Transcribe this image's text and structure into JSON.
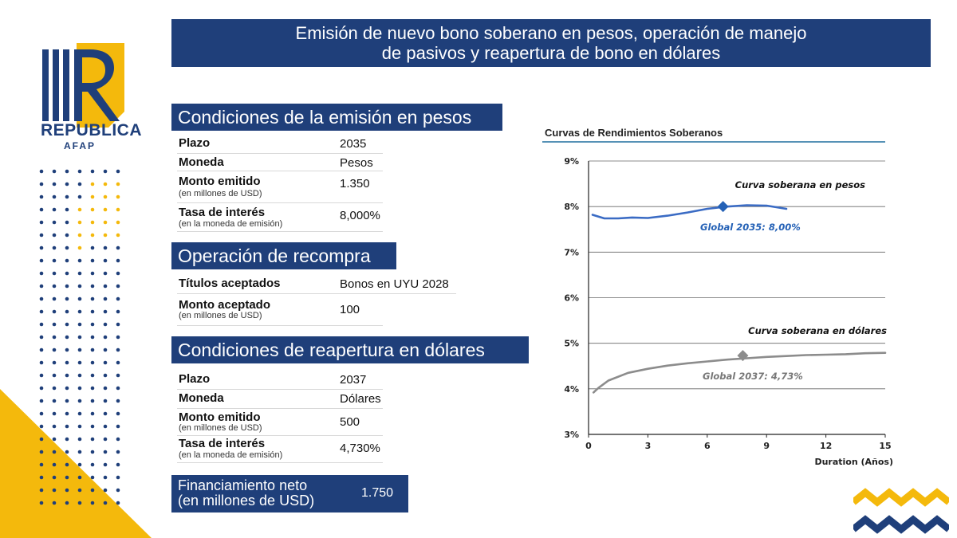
{
  "brand": {
    "name": "REPUBLICA",
    "sub": "AFAP",
    "logo_letters": "R",
    "navy": "#1f3f7a",
    "gold": "#f4b90c"
  },
  "title": {
    "line1": "Emisión de nuevo bono soberano en pesos, operación de manejo",
    "line2": "de pasivos y reapertura de bono en dólares"
  },
  "pesos": {
    "heading": "Condiciones de la emisión en pesos",
    "plazo_label": "Plazo",
    "plazo_value": "2035",
    "moneda_label": "Moneda",
    "moneda_value": "Pesos",
    "monto_label": "Monto emitido",
    "monto_sub": "(en millones de USD)",
    "monto_value": "1.350",
    "tasa_label": "Tasa de interés",
    "tasa_sub": "(en la moneda de emisión)",
    "tasa_value": "8,000%"
  },
  "recompra": {
    "heading": "Operación de recompra",
    "titulos_label": "Títulos aceptados",
    "titulos_value": "Bonos en UYU 2028",
    "monto_label": "Monto aceptado",
    "monto_sub": "(en millones de USD)",
    "monto_value": "100"
  },
  "dolares": {
    "heading": "Condiciones de reapertura en dólares",
    "plazo_label": "Plazo",
    "plazo_value": "2037",
    "moneda_label": "Moneda",
    "moneda_value": "Dólares",
    "monto_label": "Monto emitido",
    "monto_sub": "(en millones de USD)",
    "monto_value": "500",
    "tasa_label": "Tasa de interés",
    "tasa_sub": "(en la moneda de emisión)",
    "tasa_value": "4,730%"
  },
  "financiamiento": {
    "line1": "Financiamiento neto",
    "line2": "(en millones de USD)",
    "value": "1.750"
  },
  "chart_data": {
    "type": "line",
    "title": "Curvas de Rendimientos Soberanos",
    "xlabel": "Duration (Años)",
    "ylabel": "",
    "xlim": [
      0,
      15
    ],
    "ylim": [
      3,
      9
    ],
    "x_ticks": [
      "0",
      "3",
      "6",
      "9",
      "12",
      "15"
    ],
    "y_ticks": [
      "3%",
      "4%",
      "5%",
      "6%",
      "7%",
      "8%",
      "9%"
    ],
    "grid": true,
    "series": [
      {
        "name": "Curva soberana en pesos",
        "color": "#3a6bc4",
        "x": [
          0.2,
          0.8,
          1.5,
          2.2,
          3.0,
          4.0,
          5.0,
          6.0,
          7.0,
          8.0,
          9.0,
          10.0
        ],
        "y": [
          7.82,
          7.74,
          7.74,
          7.76,
          7.75,
          7.8,
          7.87,
          7.95,
          8.0,
          8.03,
          8.02,
          7.95
        ]
      },
      {
        "name": "Curva soberana en dólares",
        "color": "#8c8c8c",
        "x": [
          0.25,
          0.5,
          1.0,
          2.0,
          3.0,
          4.0,
          5.0,
          6.0,
          7.0,
          8.0,
          9.0,
          10.0,
          11.0,
          12.0,
          13.0,
          14.0,
          15.0
        ],
        "y": [
          3.92,
          4.02,
          4.18,
          4.35,
          4.44,
          4.51,
          4.56,
          4.6,
          4.64,
          4.67,
          4.7,
          4.72,
          4.74,
          4.75,
          4.76,
          4.78,
          4.79
        ]
      }
    ],
    "points": [
      {
        "label": "Global 2035: 8,00%",
        "x": 6.8,
        "y": 8.0,
        "color": "#2461b6"
      },
      {
        "label": "Global 2037: 4,73%",
        "x": 7.8,
        "y": 4.73,
        "color": "#8c8c8c"
      }
    ]
  }
}
